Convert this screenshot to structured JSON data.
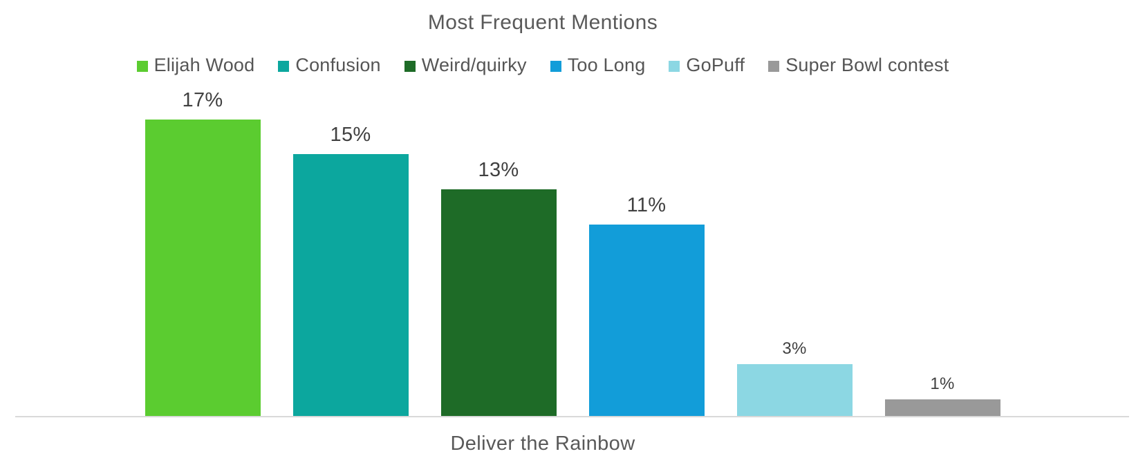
{
  "chart_data": {
    "type": "bar",
    "title": "Most Frequent Mentions",
    "xlabel": "Deliver the Rainbow",
    "ylabel": "",
    "categories": [
      "Elijah Wood",
      "Confusion",
      "Weird/quirky",
      "Too Long",
      "GoPuff",
      "Super Bowl contest"
    ],
    "values": [
      17,
      15,
      13,
      11,
      3,
      1
    ],
    "unit": "%",
    "data_labels": [
      "17%",
      "15%",
      "13%",
      "11%",
      "3%",
      "1%"
    ],
    "colors": [
      "#5BCC30",
      "#0CA79E",
      "#1E6B27",
      "#129DD9",
      "#8CD7E3",
      "#999999"
    ],
    "ylim": [
      0,
      18
    ],
    "grid": false,
    "legend_position": "top",
    "axis_line_color": "#D9D9D9",
    "title_color": "#595959",
    "legend_text_color": "#555555",
    "data_label_color": "#404040",
    "background_color": "#FFFFFF"
  }
}
